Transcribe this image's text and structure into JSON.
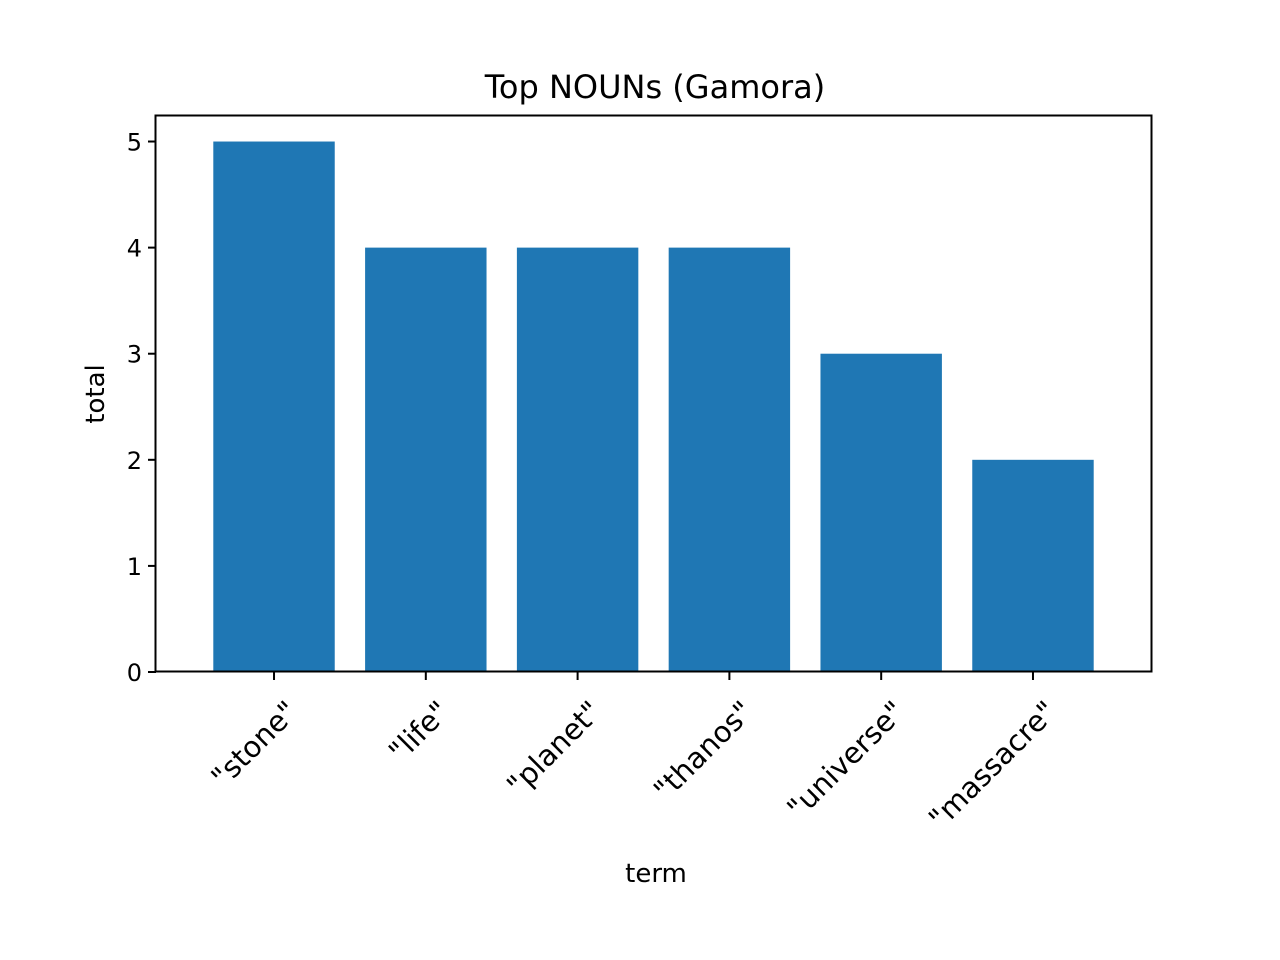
{
  "chart_data": {
    "type": "bar",
    "title": "Top NOUNs (Gamora)",
    "xlabel": "term",
    "ylabel": "total",
    "categories": [
      "\"stone\"",
      "\"life\"",
      "\"planet\"",
      "\"thanos\"",
      "\"universe\"",
      "\"massacre\""
    ],
    "values": [
      5,
      4,
      4,
      4,
      3,
      2
    ],
    "ylim": [
      0,
      5.25
    ],
    "yticks": [
      "0",
      "1",
      "2",
      "3",
      "4",
      "5"
    ],
    "grid": false,
    "legend": "none",
    "bar_color": "#1f77b4"
  }
}
